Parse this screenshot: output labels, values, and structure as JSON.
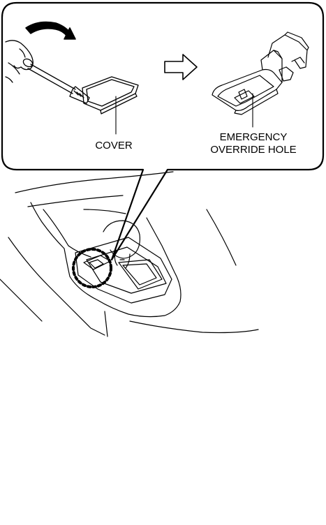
{
  "labels": {
    "cover": "COVER",
    "override_line1": "EMERGENCY",
    "override_line2": "OVERRIDE HOLE"
  },
  "colors": {
    "ink": "#000000",
    "background": "#ffffff"
  }
}
